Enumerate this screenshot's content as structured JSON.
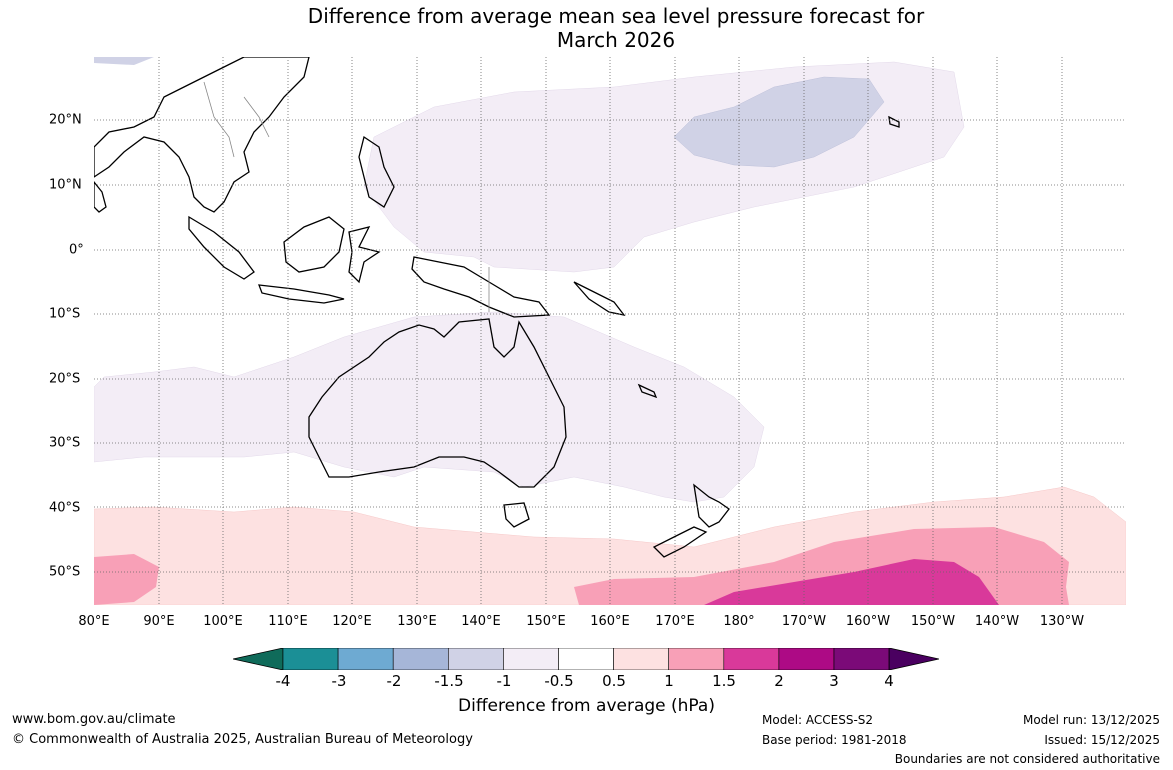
{
  "title_line1": "Difference from average mean sea level pressure forecast for",
  "title_line2": "March 2026",
  "map": {
    "lon_labels": [
      "80°E",
      "90°E",
      "100°E",
      "110°E",
      "120°E",
      "130°E",
      "140°E",
      "150°E",
      "160°E",
      "170°E",
      "180°",
      "170°W",
      "160°W",
      "150°W",
      "140°W",
      "130°W"
    ],
    "lat_labels": [
      "20°N",
      "10°N",
      "0°",
      "10°S",
      "20°S",
      "30°S",
      "40°S",
      "50°S"
    ],
    "grid": "dotted",
    "region": "Indian Ocean, Maritime Continent, Australia and South-West Pacific"
  },
  "colorbar": {
    "tick_labels": [
      "-4",
      "-3",
      "-2",
      "-1.5",
      "-1",
      "-0.5",
      "0.5",
      "1",
      "1.5",
      "2",
      "3",
      "4"
    ],
    "colors": [
      "#0f6b5a",
      "#1b8f96",
      "#6eaad2",
      "#a6b6d8",
      "#d0d2e6",
      "#f3edf6",
      "#ffffff",
      "#fde1e1",
      "#f8a0b7",
      "#d9399a",
      "#ad0a85",
      "#7b0a78",
      "#4a0060"
    ],
    "title": "Difference from average (hPa)"
  },
  "footer": {
    "url": "www.bom.gov.au/climate",
    "copyright": "© Commonwealth of Australia 2025, Australian Bureau of Meteorology",
    "model": "Model: ACCESS-S2",
    "base_period": "Base period: 1981-2018",
    "model_run": "Model run: 13/12/2025",
    "issued": "Issued: 15/12/2025",
    "disclaimer": "Boundaries are not considered authoritative"
  }
}
